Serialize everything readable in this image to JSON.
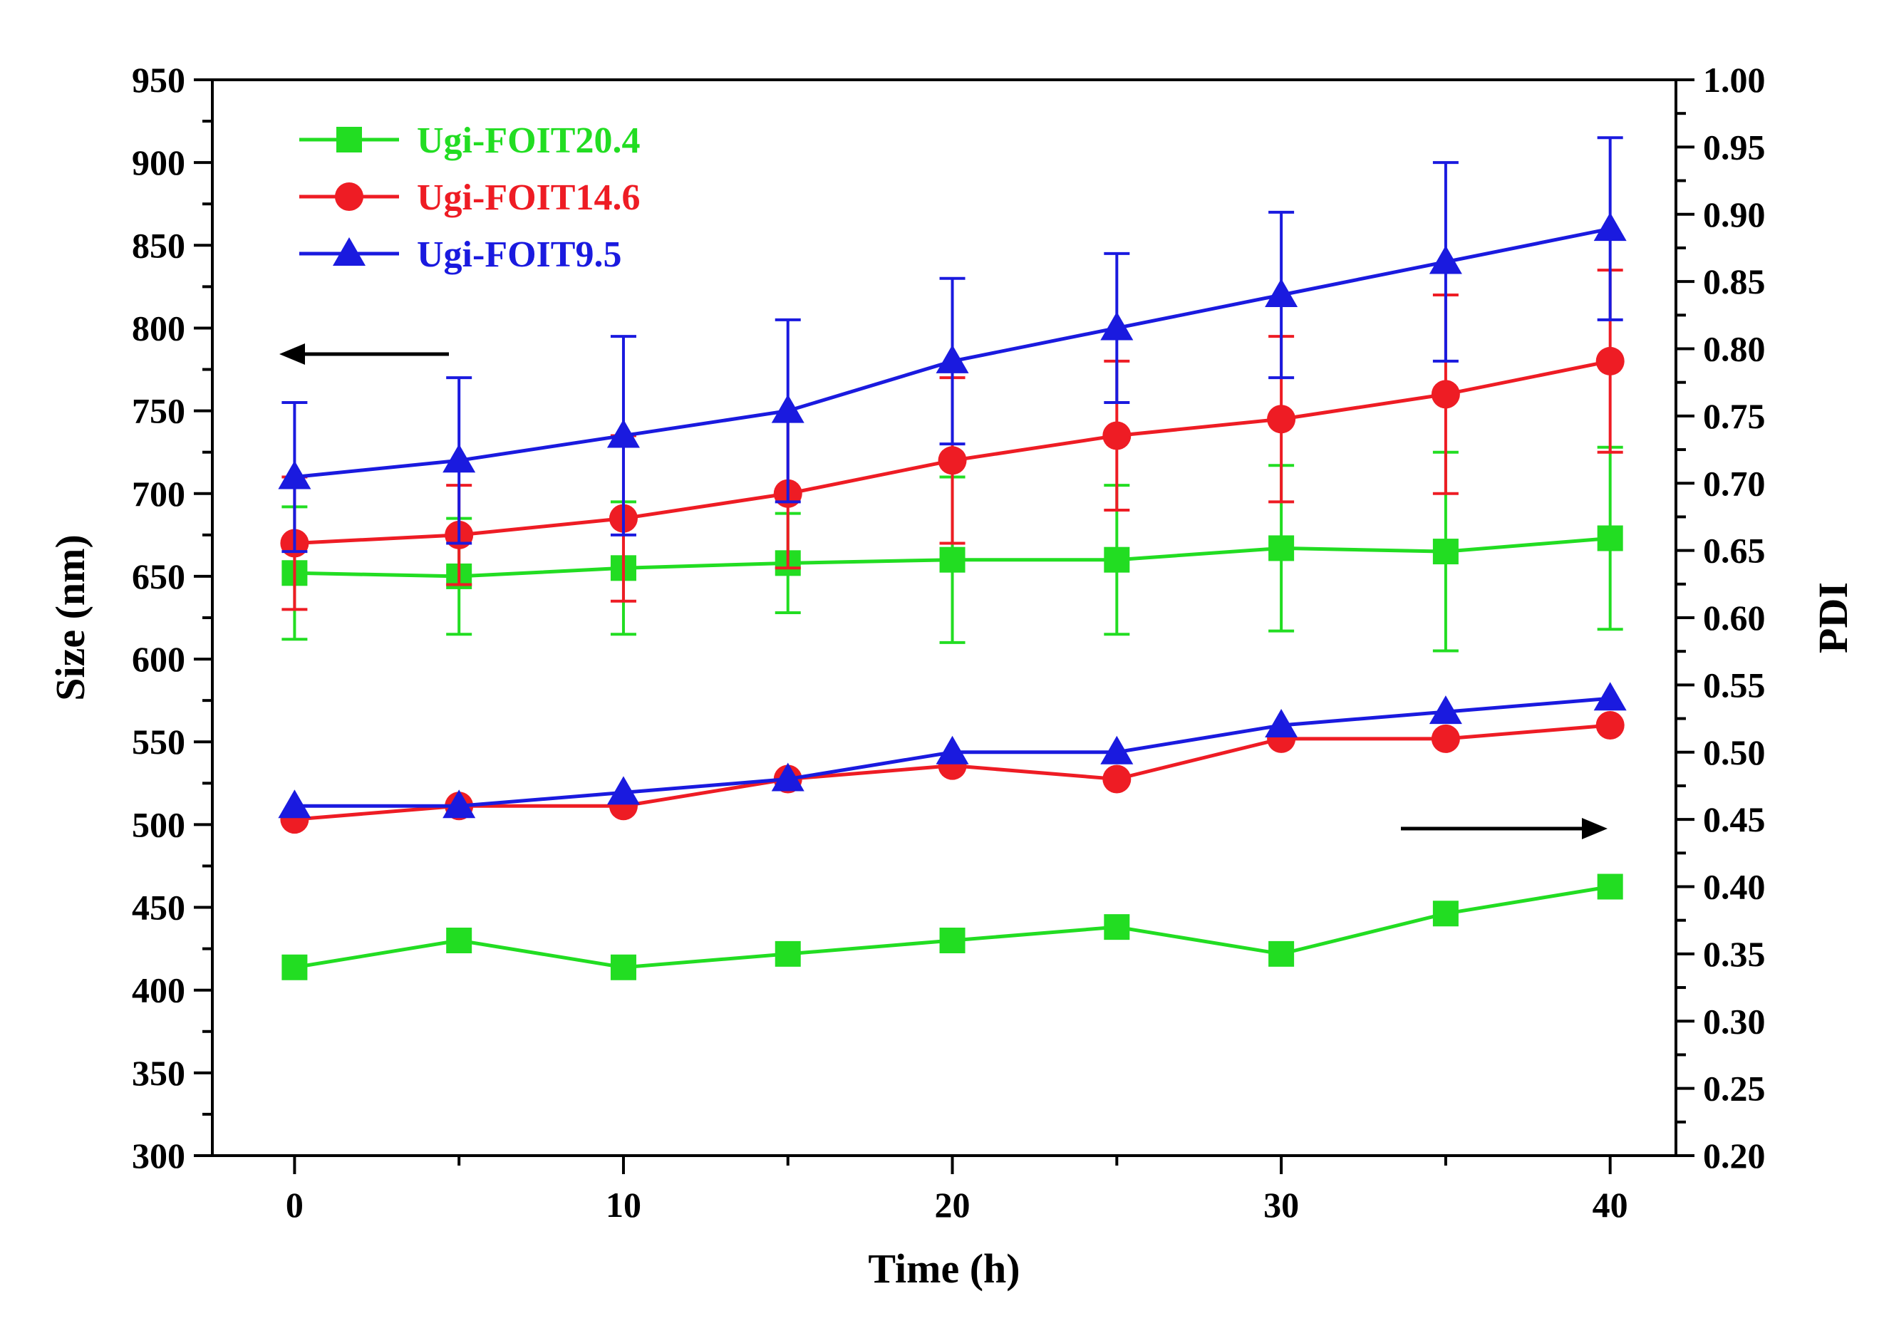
{
  "chart_data": {
    "type": "line",
    "xlabel": "Time (h)",
    "ylabel_left": "Size (nm)",
    "ylabel_right": "PDI",
    "xlim": [
      -2.5,
      42
    ],
    "ylim_left": [
      300,
      950
    ],
    "ylim_right": [
      0.2,
      1.0
    ],
    "x_ticks": [
      0,
      10,
      20,
      30,
      40
    ],
    "y_left_ticks": [
      "300",
      "350",
      "400",
      "450",
      "500",
      "550",
      "600",
      "650",
      "700",
      "750",
      "800",
      "850",
      "900",
      "950"
    ],
    "y_right_ticks": [
      "0.20",
      "0.25",
      "0.30",
      "0.35",
      "0.40",
      "0.45",
      "0.50",
      "0.55",
      "0.60",
      "0.65",
      "0.70",
      "0.75",
      "0.80",
      "0.85",
      "0.90",
      "0.95",
      "1.00"
    ],
    "grid": false,
    "legend_position": "top-left",
    "x": [
      0,
      5,
      10,
      15,
      20,
      25,
      30,
      35,
      40
    ],
    "series": [
      {
        "name": "Ugi-FOIT20.4",
        "color": "#22dd22",
        "marker": "square",
        "size_nm": [
          652,
          650,
          655,
          658,
          660,
          660,
          667,
          665,
          673
        ],
        "size_err": [
          40,
          35,
          40,
          30,
          50,
          45,
          50,
          60,
          55
        ],
        "pdi": [
          0.34,
          0.36,
          0.34,
          0.35,
          0.36,
          0.37,
          0.35,
          0.38,
          0.4
        ]
      },
      {
        "name": "Ugi-FOIT14.6",
        "color": "#ee1c24",
        "marker": "circle",
        "size_nm": [
          670,
          675,
          685,
          700,
          720,
          735,
          745,
          760,
          780
        ],
        "size_err": [
          40,
          30,
          50,
          45,
          50,
          45,
          50,
          60,
          55
        ],
        "pdi": [
          0.45,
          0.46,
          0.46,
          0.48,
          0.49,
          0.48,
          0.51,
          0.51,
          0.52
        ]
      },
      {
        "name": "Ugi-FOIT9.5",
        "color": "#1a1adf",
        "marker": "triangle",
        "size_nm": [
          710,
          720,
          735,
          750,
          780,
          800,
          820,
          840,
          860
        ],
        "size_err": [
          45,
          50,
          60,
          55,
          50,
          45,
          50,
          60,
          55
        ],
        "pdi": [
          0.46,
          0.46,
          0.47,
          0.48,
          0.5,
          0.5,
          0.52,
          0.53,
          0.54
        ]
      }
    ],
    "annotations": [
      {
        "type": "arrow",
        "direction": "left",
        "meaning": "size series read on left axis"
      },
      {
        "type": "arrow",
        "direction": "right",
        "meaning": "PDI series read on right axis"
      }
    ]
  }
}
